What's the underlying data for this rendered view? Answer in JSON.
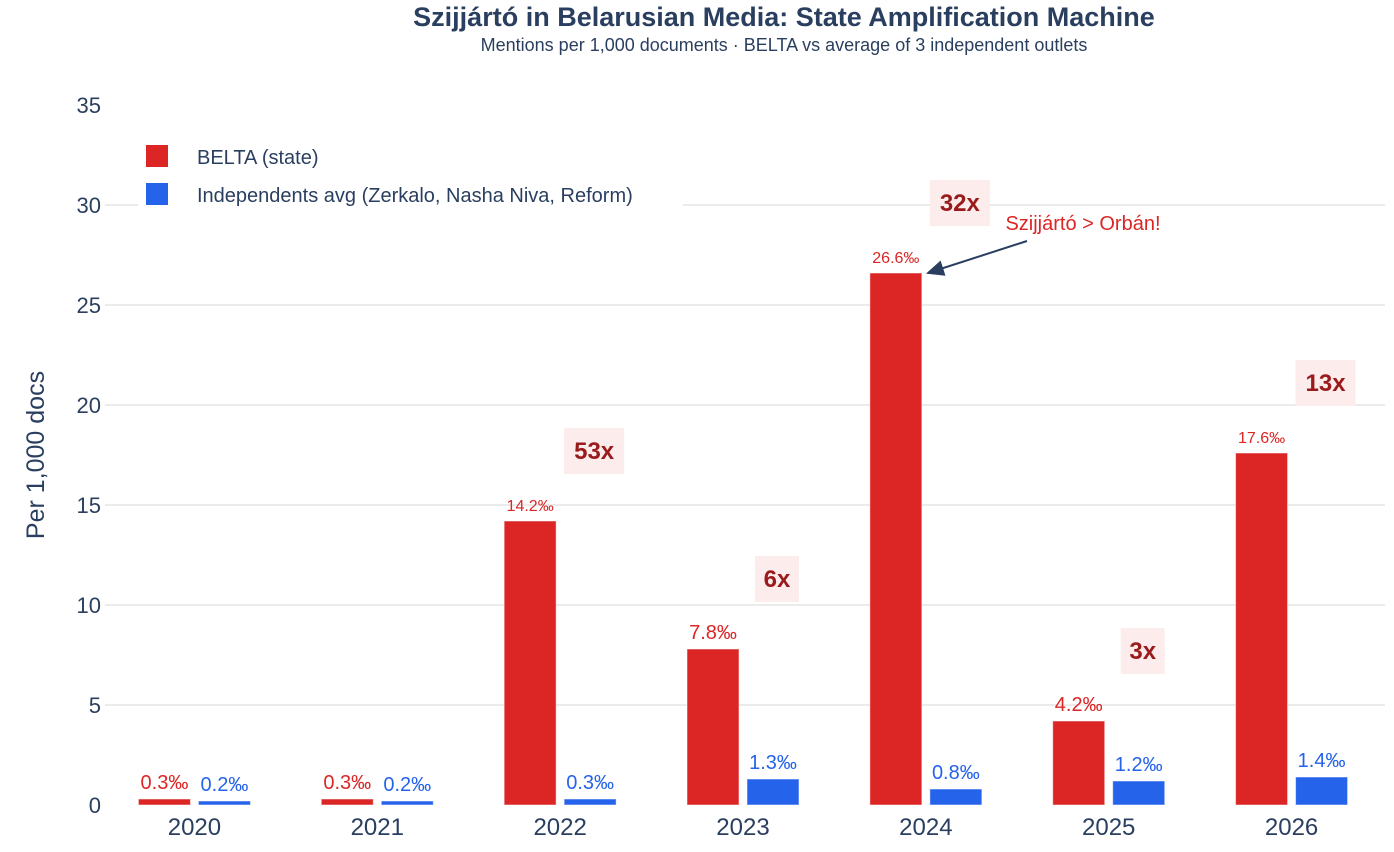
{
  "chart_data": {
    "type": "bar",
    "title": "Szijjártó in Belarusian Media: State Amplification Machine",
    "subtitle": "Mentions per 1,000 documents · BELTA vs average of 3 independent outlets",
    "xlabel": "",
    "ylabel": "Per 1,000 docs",
    "ylim": [
      0,
      35
    ],
    "yticks": [
      0,
      5,
      10,
      15,
      20,
      25,
      30,
      35
    ],
    "grid": true,
    "legend_position": "top-left",
    "categories": [
      "2020",
      "2021",
      "2022",
      "2023",
      "2024",
      "2025",
      "2026"
    ],
    "series": [
      {
        "name": "BELTA (state)",
        "color": "#dc2626",
        "values": [
          0.3,
          0.3,
          14.2,
          7.8,
          26.6,
          4.2,
          17.6
        ],
        "labels": [
          "0.3‰",
          "0.3‰",
          "14.2‰",
          "7.8‰",
          "26.6‰",
          "4.2‰",
          "17.6‰"
        ]
      },
      {
        "name": "Independents avg (Zerkalo, Nasha Niva, Reform)",
        "color": "#2563eb",
        "values": [
          0.2,
          0.2,
          0.3,
          1.3,
          0.8,
          1.2,
          1.4
        ],
        "labels": [
          "0.2‰",
          "0.2‰",
          "0.3‰",
          "1.3‰",
          "0.8‰",
          "1.2‰",
          "1.4‰"
        ]
      }
    ],
    "ratio_annotations": [
      {
        "category": "2022",
        "text": "53x",
        "y": 17.7
      },
      {
        "category": "2023",
        "text": "6x",
        "y": 11.3
      },
      {
        "category": "2024",
        "text": "32x",
        "y": 30.1
      },
      {
        "category": "2025",
        "text": "3x",
        "y": 7.7
      },
      {
        "category": "2026",
        "text": "13x",
        "y": 21.1
      }
    ],
    "callout": {
      "text": "Szijjártó > Orbán!",
      "category": "2024",
      "points_to_value": 26.6,
      "color": "#dc2626",
      "arrow_color": "#2a3f5f"
    },
    "ratio_box_color": "#fdecec",
    "ratio_text_color": "#991b1b",
    "text_color": "#2a3f5f",
    "grid_color": "#ebebeb"
  }
}
